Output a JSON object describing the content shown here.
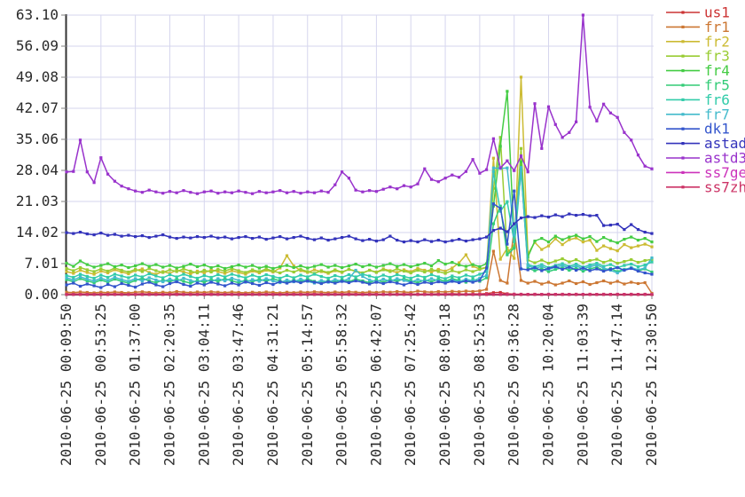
{
  "colors": {
    "background": "#ffffff",
    "grid": "#d6d6ee",
    "axis": "#333333",
    "tick": "#808080",
    "label": "#2a2a2a"
  },
  "chart_data": {
    "type": "line",
    "title": "",
    "xlabel": "",
    "ylabel": "",
    "ylim": [
      0,
      63.1
    ],
    "grid": true,
    "legend_position": "right",
    "marker": "square",
    "y_tick_labels": [
      "0.00",
      "7.01",
      "14.02",
      "21.03",
      "28.04",
      "35.06",
      "42.07",
      "49.08",
      "56.09",
      "63.10"
    ],
    "x_tick_labels": [
      "2010-06-25 00:09:50",
      "2010-06-25 00:53:25",
      "2010-06-25 01:37:00",
      "2010-06-25 02:20:35",
      "2010-06-25 03:04:11",
      "2010-06-25 03:47:46",
      "2010-06-25 04:31:21",
      "2010-06-25 05:14:57",
      "2010-06-25 05:58:32",
      "2010-06-25 06:42:07",
      "2010-06-25 07:25:42",
      "2010-06-25 08:09:18",
      "2010-06-25 08:52:53",
      "2010-06-25 09:36:28",
      "2010-06-25 10:20:04",
      "2010-06-25 11:03:39",
      "2010-06-25 11:47:14",
      "2010-06-25 12:30:50"
    ],
    "series": [
      {
        "name": "us1",
        "color": "#cc3333",
        "values": [
          0.15,
          0.12,
          0.18,
          0.14,
          0.1,
          0.16,
          0.12,
          0.18,
          0.14,
          0.1,
          0.16,
          0.2,
          0.14,
          0.1,
          0.16,
          0.12,
          0.22,
          0.16,
          0.12,
          0.18,
          0.14,
          0.2,
          0.16,
          0.12,
          0.18,
          0.14,
          0.1,
          0.16,
          0.12,
          0.18,
          0.14,
          0.1,
          0.16,
          0.12,
          0.18,
          0.14,
          0.2,
          0.16,
          0.12,
          0.18,
          0.14,
          0.2,
          0.16,
          0.12,
          0.18,
          0.14,
          0.1,
          0.16,
          0.12,
          0.18,
          0.14,
          0.1,
          0.16,
          0.12,
          0.18,
          0.14,
          0.2,
          0.16,
          0.12,
          0.18,
          0.14,
          0.25,
          0.45,
          0.5,
          0.2,
          0.12,
          0.1,
          0.08,
          0.1,
          0.08,
          0.1,
          0.08,
          0.1,
          0.08,
          0.1,
          0.08,
          0.1,
          0.08,
          0.1,
          0.08,
          0.1,
          0.08,
          0.1,
          0.08,
          0.1,
          0.08
        ]
      },
      {
        "name": "fr1",
        "color": "#cc7733",
        "values": [
          0.55,
          0.45,
          0.6,
          0.5,
          0.4,
          0.55,
          0.45,
          0.6,
          0.5,
          0.4,
          0.55,
          0.65,
          0.5,
          0.4,
          0.55,
          0.45,
          0.7,
          0.55,
          0.45,
          0.6,
          0.5,
          0.65,
          0.55,
          0.45,
          0.6,
          0.5,
          0.4,
          0.55,
          0.45,
          0.6,
          0.5,
          0.4,
          0.55,
          0.45,
          0.6,
          0.5,
          0.65,
          0.55,
          0.45,
          0.6,
          0.5,
          0.65,
          0.55,
          0.45,
          0.6,
          0.5,
          0.65,
          0.55,
          0.7,
          0.6,
          0.5,
          0.8,
          0.65,
          0.55,
          0.7,
          0.6,
          0.75,
          0.65,
          0.8,
          0.7,
          0.85,
          1.2,
          9.8,
          3.2,
          2.6,
          14.6,
          3.2,
          2.6,
          3.0,
          2.4,
          2.8,
          2.2,
          2.6,
          3.1,
          2.5,
          2.9,
          2.3,
          2.7,
          3.1,
          2.6,
          3.0,
          2.4,
          2.8,
          2.5,
          2.7,
          0.3
        ]
      },
      {
        "name": "fr2",
        "color": "#ccbb33",
        "values": [
          5.2,
          4.8,
          5.5,
          5.0,
          4.6,
          5.3,
          4.9,
          5.6,
          5.1,
          4.7,
          5.4,
          5.8,
          5.0,
          4.6,
          5.2,
          4.8,
          5.5,
          5.1,
          4.7,
          5.3,
          4.9,
          5.6,
          5.2,
          4.8,
          5.4,
          5.0,
          4.6,
          5.3,
          4.9,
          5.5,
          5.1,
          6.0,
          8.8,
          6.5,
          5.4,
          5.0,
          5.6,
          5.2,
          4.8,
          5.4,
          5.0,
          5.7,
          5.3,
          4.9,
          5.5,
          5.1,
          5.8,
          5.4,
          5.0,
          5.6,
          5.2,
          5.9,
          5.5,
          5.1,
          5.7,
          5.3,
          6.0,
          7.2,
          9.0,
          6.4,
          5.8,
          6.2,
          30.8,
          8.0,
          10.5,
          8.2,
          49.1,
          9.2,
          11.8,
          10.2,
          11.0,
          12.6,
          11.3,
          12.4,
          12.8,
          11.9,
          12.3,
          10.0,
          11.0,
          10.4,
          9.9,
          11.3,
          10.6,
          11.0,
          11.4,
          10.8
        ]
      },
      {
        "name": "fr3",
        "color": "#99cc33",
        "values": [
          5.9,
          5.4,
          6.1,
          5.6,
          5.2,
          5.8,
          5.3,
          6.0,
          5.5,
          5.1,
          5.7,
          5.2,
          5.9,
          5.4,
          5.0,
          5.6,
          5.2,
          5.8,
          5.3,
          4.9,
          5.5,
          5.1,
          5.7,
          5.3,
          5.9,
          5.4,
          5.0,
          5.6,
          5.2,
          5.8,
          5.3,
          4.9,
          5.5,
          5.1,
          5.7,
          5.2,
          4.8,
          5.4,
          5.0,
          5.6,
          5.1,
          5.7,
          5.3,
          4.9,
          5.5,
          5.0,
          5.6,
          5.2,
          5.8,
          5.3,
          4.9,
          5.5,
          5.1,
          5.7,
          5.2,
          4.8,
          5.4,
          5.0,
          5.6,
          5.2,
          5.7,
          6.1,
          24.0,
          35.5,
          9.5,
          11.0,
          33.0,
          7.8,
          7.2,
          7.8,
          7.1,
          7.6,
          8.1,
          7.4,
          7.9,
          7.2,
          7.7,
          8.0,
          7.3,
          7.8,
          7.1,
          7.5,
          7.9,
          7.3,
          7.7,
          8.0
        ]
      },
      {
        "name": "fr4",
        "color": "#44cc44",
        "values": [
          7.1,
          6.4,
          7.6,
          6.8,
          6.2,
          6.6,
          7.0,
          6.3,
          6.7,
          6.1,
          6.5,
          7.0,
          6.4,
          6.8,
          6.2,
          6.6,
          6.0,
          6.4,
          6.9,
          6.3,
          6.7,
          6.1,
          6.5,
          5.9,
          6.3,
          6.7,
          6.2,
          6.6,
          6.0,
          6.4,
          5.9,
          6.3,
          6.6,
          6.1,
          6.5,
          6.0,
          6.4,
          6.8,
          6.2,
          6.6,
          6.1,
          6.5,
          6.9,
          6.3,
          6.7,
          6.2,
          6.6,
          7.0,
          6.4,
          6.8,
          6.3,
          6.7,
          7.1,
          6.5,
          7.7,
          6.9,
          7.3,
          6.7,
          6.4,
          6.8,
          6.3,
          7.0,
          20.0,
          33.5,
          45.9,
          12.0,
          30.0,
          8.5,
          12.1,
          12.7,
          11.9,
          13.2,
          12.4,
          13.0,
          13.4,
          12.6,
          13.1,
          12.0,
          12.9,
          12.2,
          11.7,
          12.5,
          13.0,
          12.3,
          12.7,
          11.9
        ]
      },
      {
        "name": "fr5",
        "color": "#33cc77",
        "values": [
          3.4,
          2.9,
          3.6,
          3.1,
          2.7,
          3.3,
          2.8,
          3.5,
          3.0,
          2.6,
          3.2,
          3.7,
          3.1,
          2.7,
          3.3,
          2.9,
          3.5,
          3.0,
          2.6,
          3.2,
          2.8,
          3.4,
          3.0,
          3.6,
          3.1,
          2.7,
          3.3,
          2.9,
          3.5,
          3.0,
          3.6,
          3.1,
          2.7,
          3.3,
          2.9,
          3.5,
          3.0,
          2.6,
          3.2,
          2.8,
          3.4,
          2.9,
          3.5,
          3.1,
          2.7,
          3.3,
          2.8,
          3.4,
          3.0,
          3.6,
          3.1,
          2.7,
          3.3,
          2.9,
          3.5,
          3.0,
          3.6,
          3.2,
          2.8,
          3.4,
          3.0,
          3.8,
          16.0,
          20.0,
          9.0,
          10.5,
          28.2,
          6.0,
          5.4,
          5.9,
          5.2,
          5.7,
          6.1,
          5.5,
          6.0,
          5.3,
          5.8,
          6.2,
          5.5,
          5.9,
          5.2,
          5.7,
          6.0,
          5.4,
          5.8,
          5.1
        ]
      },
      {
        "name": "fr6",
        "color": "#33ccaa",
        "values": [
          4.3,
          3.9,
          4.6,
          4.1,
          3.7,
          4.4,
          3.9,
          4.6,
          4.2,
          3.8,
          4.4,
          4.0,
          4.7,
          4.2,
          3.8,
          4.5,
          4.0,
          4.6,
          4.1,
          3.7,
          4.3,
          3.9,
          4.5,
          4.0,
          4.6,
          4.2,
          3.8,
          4.4,
          3.9,
          4.5,
          4.1,
          3.7,
          4.3,
          3.8,
          4.4,
          4.0,
          4.6,
          4.1,
          3.7,
          4.3,
          3.9,
          4.5,
          4.0,
          4.6,
          4.2,
          3.8,
          4.4,
          3.9,
          4.5,
          4.1,
          3.7,
          4.3,
          3.9,
          4.5,
          4.0,
          3.6,
          4.2,
          3.8,
          4.4,
          4.0,
          4.6,
          5.2,
          27.8,
          18.8,
          21.0,
          12.0,
          27.9,
          6.8,
          6.3,
          6.8,
          6.1,
          6.6,
          7.0,
          6.4,
          6.9,
          6.2,
          6.7,
          7.1,
          6.4,
          6.8,
          6.1,
          6.6,
          6.9,
          6.3,
          6.7,
          7.4
        ]
      },
      {
        "name": "fr7",
        "color": "#44bbcc",
        "values": [
          3.8,
          3.3,
          4.0,
          3.5,
          3.1,
          3.7,
          3.2,
          3.9,
          3.4,
          3.0,
          3.6,
          3.1,
          3.8,
          3.3,
          2.9,
          3.5,
          3.0,
          3.7,
          3.2,
          2.8,
          3.4,
          2.9,
          3.6,
          3.1,
          3.7,
          3.2,
          2.8,
          3.4,
          3.0,
          3.6,
          3.1,
          2.7,
          3.3,
          2.9,
          3.5,
          3.0,
          2.6,
          3.2,
          2.8,
          3.4,
          3.0,
          3.6,
          5.5,
          4.1,
          3.3,
          2.9,
          3.5,
          3.0,
          3.6,
          3.2,
          2.8,
          3.4,
          3.0,
          3.6,
          3.1,
          2.7,
          3.3,
          2.9,
          3.5,
          3.1,
          3.7,
          4.3,
          28.6,
          28.5,
          28.6,
          13.5,
          28.7,
          6.5,
          5.9,
          6.4,
          5.7,
          6.2,
          6.6,
          6.0,
          6.5,
          5.8,
          6.3,
          6.7,
          6.0,
          5.5,
          4.9,
          5.6,
          6.1,
          5.6,
          6.0,
          8.3
        ]
      },
      {
        "name": "dk1",
        "color": "#3355cc",
        "values": [
          2.2,
          2.6,
          1.9,
          2.4,
          2.0,
          1.6,
          2.3,
          1.8,
          2.5,
          2.1,
          1.7,
          2.4,
          2.8,
          2.2,
          1.8,
          2.5,
          2.9,
          2.3,
          1.9,
          2.6,
          2.2,
          2.8,
          2.4,
          2.0,
          2.6,
          2.2,
          2.9,
          2.5,
          2.1,
          2.7,
          2.3,
          2.9,
          2.6,
          3.0,
          2.7,
          3.1,
          2.8,
          2.5,
          2.9,
          2.6,
          3.0,
          2.7,
          3.1,
          2.8,
          2.4,
          2.8,
          2.5,
          2.9,
          2.6,
          2.2,
          2.7,
          2.3,
          2.8,
          2.5,
          2.9,
          2.6,
          3.0,
          2.7,
          3.1,
          2.8,
          3.2,
          6.0,
          20.5,
          19.5,
          11.4,
          23.4,
          5.8,
          5.6,
          6.1,
          5.4,
          5.9,
          6.3,
          5.7,
          6.2,
          5.5,
          6.0,
          5.4,
          5.8,
          5.3,
          5.7,
          6.1,
          5.5,
          5.9,
          5.3,
          4.9,
          4.6
        ]
      },
      {
        "name": "astad",
        "color": "#3333bb",
        "values": [
          14.0,
          13.8,
          14.1,
          13.7,
          13.5,
          13.9,
          13.4,
          13.6,
          13.2,
          13.4,
          13.1,
          13.3,
          12.9,
          13.2,
          13.5,
          13.0,
          12.7,
          13.0,
          12.8,
          13.1,
          12.9,
          13.2,
          12.8,
          13.0,
          12.6,
          12.9,
          13.1,
          12.7,
          13.0,
          12.5,
          12.8,
          13.1,
          12.6,
          12.9,
          13.2,
          12.7,
          12.4,
          12.8,
          12.3,
          12.6,
          12.9,
          13.2,
          12.6,
          12.2,
          12.5,
          12.1,
          12.4,
          13.2,
          12.3,
          11.9,
          12.2,
          11.9,
          12.4,
          12.0,
          12.3,
          11.9,
          12.2,
          12.5,
          12.1,
          12.4,
          12.6,
          13.0,
          14.5,
          15.0,
          14.2,
          16.0,
          17.3,
          17.6,
          17.4,
          17.8,
          17.5,
          18.0,
          17.6,
          18.2,
          17.9,
          18.1,
          17.8,
          17.9,
          15.6,
          15.7,
          15.9,
          14.7,
          15.8,
          14.7,
          14.1,
          13.8
        ]
      },
      {
        "name": "astd3",
        "color": "#9933cc",
        "values": [
          27.7,
          27.8,
          34.9,
          27.7,
          25.3,
          30.9,
          27.2,
          25.6,
          24.5,
          23.9,
          23.4,
          23.1,
          23.6,
          23.2,
          22.9,
          23.3,
          23.0,
          23.5,
          23.1,
          22.8,
          23.2,
          23.4,
          22.9,
          23.2,
          23.0,
          23.4,
          23.1,
          22.8,
          23.3,
          23.0,
          23.2,
          23.5,
          23.0,
          23.3,
          22.9,
          23.2,
          23.0,
          23.4,
          23.1,
          24.8,
          27.7,
          26.3,
          23.6,
          23.2,
          23.5,
          23.3,
          23.8,
          24.3,
          23.9,
          24.6,
          24.3,
          25.0,
          28.4,
          26.0,
          25.5,
          26.3,
          27.0,
          26.5,
          27.8,
          30.5,
          27.4,
          28.2,
          35.2,
          28.6,
          30.2,
          28.0,
          31.3,
          27.7,
          43.1,
          33.0,
          42.4,
          38.4,
          35.5,
          36.6,
          39.0,
          63.1,
          42.3,
          39.2,
          43.0,
          41.0,
          40.0,
          36.6,
          34.9,
          31.5,
          29.0,
          28.4
        ]
      },
      {
        "name": "ss7ge",
        "color": "#cc33bb",
        "values": [
          0.05,
          0.05,
          0.05,
          0.05,
          0.05,
          0.05,
          0.05,
          0.05,
          0.05,
          0.05,
          0.05,
          0.05,
          0.05,
          0.05,
          0.05,
          0.05,
          0.05,
          0.05,
          0.05,
          0.05,
          0.05,
          0.05,
          0.05,
          0.05,
          0.05,
          0.05,
          0.05,
          0.05,
          0.05,
          0.05,
          0.05,
          0.05,
          0.05,
          0.05,
          0.05,
          0.05,
          0.05,
          0.05,
          0.05,
          0.05,
          0.05,
          0.05,
          0.05,
          0.05,
          0.05,
          0.05,
          0.05,
          0.05,
          0.05,
          0.05,
          0.05,
          0.05,
          0.05,
          0.05,
          0.05,
          0.05,
          0.05,
          0.05,
          0.05,
          0.05,
          0.05,
          0.05,
          0.05,
          0.05,
          0.05,
          0.05,
          0.05,
          0.05,
          0.05,
          0.05,
          0.05,
          0.05,
          0.05,
          0.05,
          0.05,
          0.05,
          0.05,
          0.05,
          0.05,
          0.05,
          0.05,
          0.05,
          0.05,
          0.05,
          0.05,
          0.05
        ]
      },
      {
        "name": "ss7zh",
        "color": "#cc3366",
        "values": [
          0.02,
          0.02,
          0.02,
          0.02,
          0.02,
          0.02,
          0.02,
          0.02,
          0.02,
          0.02,
          0.02,
          0.02,
          0.02,
          0.02,
          0.02,
          0.02,
          0.02,
          0.02,
          0.02,
          0.02,
          0.02,
          0.02,
          0.02,
          0.02,
          0.02,
          0.02,
          0.02,
          0.02,
          0.02,
          0.02,
          0.02,
          0.02,
          0.02,
          0.02,
          0.02,
          0.02,
          0.02,
          0.02,
          0.02,
          0.02,
          0.02,
          0.02,
          0.02,
          0.02,
          0.02,
          0.02,
          0.02,
          0.02,
          0.02,
          0.02,
          0.02,
          0.02,
          0.02,
          0.02,
          0.02,
          0.02,
          0.02,
          0.02,
          0.02,
          0.02,
          0.02,
          0.02,
          0.02,
          0.02,
          0.02,
          0.02,
          0.02,
          0.02,
          0.02,
          0.02,
          0.02,
          0.02,
          0.02,
          0.02,
          0.02,
          0.02,
          0.02,
          0.02,
          0.02,
          0.02,
          0.02,
          0.02,
          0.02,
          0.02,
          0.02,
          0.02
        ]
      }
    ]
  }
}
